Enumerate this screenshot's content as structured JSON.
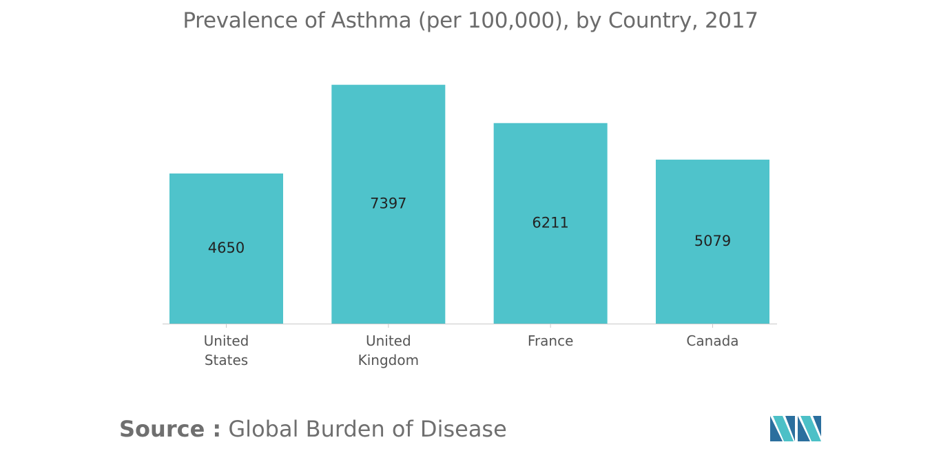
{
  "title": "Prevalence of Asthma (per 100,000), by Country, 2017",
  "source": {
    "label": "Source :",
    "text": "Global Burden of Disease"
  },
  "logo": {
    "icon": "mordor-intelligence-logo-icon",
    "colors": [
      "#2b6f9e",
      "#4cc0c7"
    ]
  },
  "colors": {
    "bar": "#4fc3cb",
    "axis": "#c9c9c9",
    "label_text": "#222222",
    "tick_text": "#555555"
  },
  "chart_data": {
    "type": "bar",
    "title": "Prevalence of Asthma (per 100,000), by Country, 2017",
    "categories": [
      [
        "United",
        "States"
      ],
      [
        "United",
        "Kingdom"
      ],
      [
        "France"
      ],
      [
        "Canada"
      ]
    ],
    "values": [
      4650,
      7397,
      6211,
      5079
    ],
    "data_labels": [
      "4650",
      "7397",
      "6211",
      "5079"
    ],
    "ylim": [
      0,
      7400
    ],
    "grid": false,
    "legend": "none",
    "xlabel": "",
    "ylabel": ""
  }
}
